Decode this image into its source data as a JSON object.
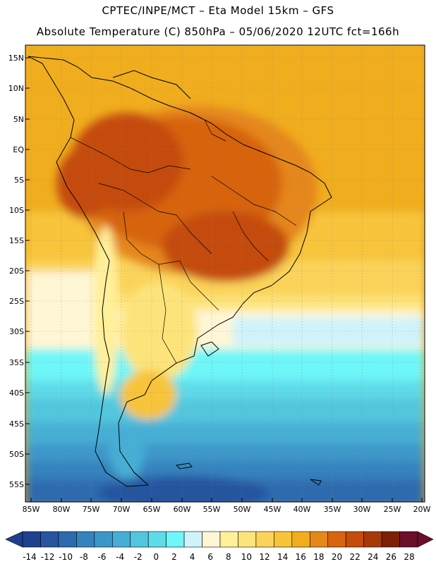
{
  "header": {
    "line1": "CPTEC/INPE/MCT –  Eta Model 15km – GFS",
    "line2": "Absolute Temperature (C) 850hPa – 05/06/2020 12UTC fct=166h"
  },
  "axes": {
    "lat_labels": [
      "15N",
      "10N",
      "5N",
      "EQ",
      "5S",
      "10S",
      "15S",
      "20S",
      "25S",
      "30S",
      "35S",
      "40S",
      "45S",
      "50S",
      "55S"
    ],
    "lon_labels": [
      "85W",
      "80W",
      "75W",
      "70W",
      "65W",
      "60W",
      "55W",
      "50W",
      "45W",
      "40W",
      "35W",
      "30W",
      "25W",
      "20W"
    ]
  },
  "colorbar": {
    "labels": [
      "-14",
      "-12",
      "-10",
      "-8",
      "-6",
      "-4",
      "-2",
      "0",
      "2",
      "4",
      "6",
      "8",
      "10",
      "12",
      "14",
      "16",
      "18",
      "20",
      "22",
      "24",
      "26",
      "28"
    ],
    "colors": [
      "#1f3f8f",
      "#27559f",
      "#2d6aae",
      "#3582bd",
      "#3c97c9",
      "#46aed4",
      "#52c6de",
      "#5fdbe8",
      "#6ef6f8",
      "#d0f3fb",
      "#fff6d6",
      "#fff09a",
      "#fde47a",
      "#fbd35a",
      "#f7c43a",
      "#f0ad1e",
      "#e5871a",
      "#d76410",
      "#c44c0c",
      "#a63908",
      "#7d2005",
      "#6b0f2a"
    ]
  },
  "map": {
    "region": "South America",
    "variable": "850hPa temperature"
  }
}
